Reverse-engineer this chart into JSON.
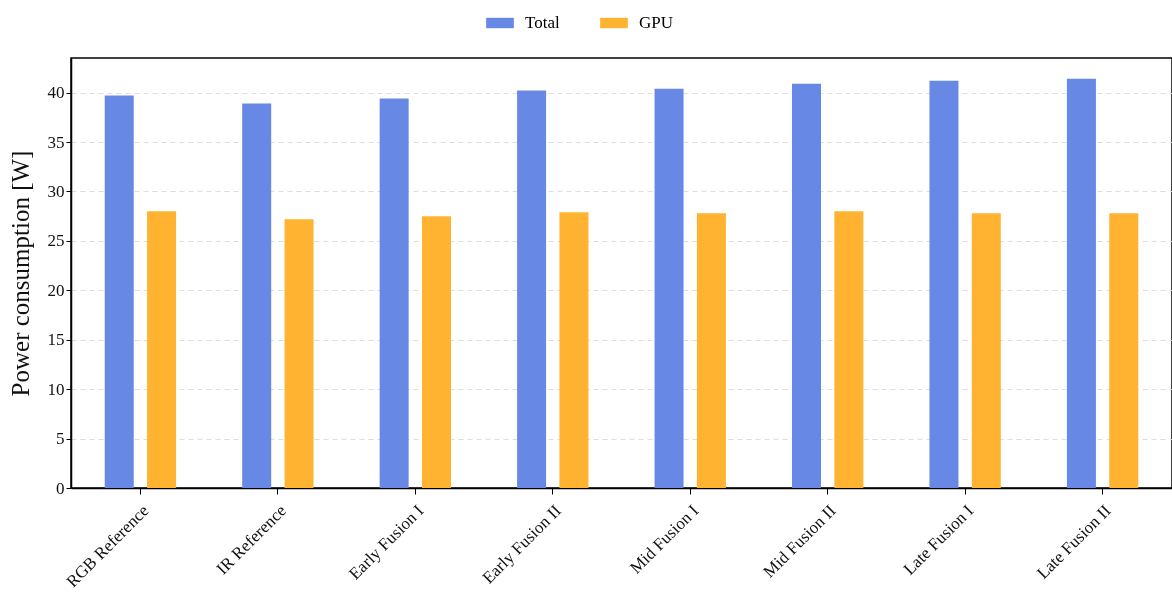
{
  "chart_data": {
    "type": "bar",
    "categories": [
      "RGB Reference",
      "IR Reference",
      "Early Fusion I",
      "Early Fusion II",
      "Mid Fusion I",
      "Mid Fusion II",
      "Late Fusion I",
      "Late Fusion II"
    ],
    "series": [
      {
        "name": "Total",
        "color": "#6788e5",
        "values": [
          39.7,
          38.9,
          39.4,
          40.2,
          40.4,
          40.9,
          41.2,
          41.4
        ]
      },
      {
        "name": "GPU",
        "color": "#ffb330",
        "values": [
          28.0,
          27.2,
          27.5,
          27.9,
          27.8,
          28.0,
          27.8,
          27.8
        ]
      }
    ],
    "ylabel": "Power consumption [W]",
    "ylim": [
      0,
      43.5
    ],
    "yticks": [
      0,
      5,
      10,
      15,
      20,
      25,
      30,
      35,
      40
    ],
    "grid": "y",
    "legend": "top"
  }
}
